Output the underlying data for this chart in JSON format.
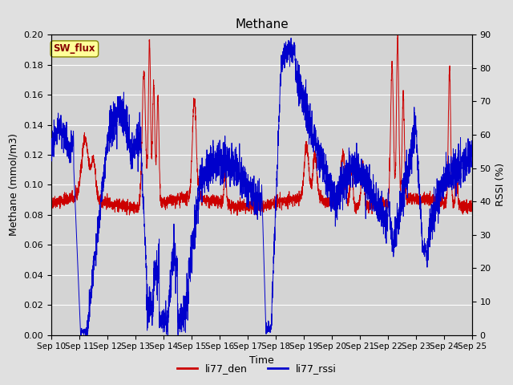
{
  "title": "Methane",
  "ylabel_left": "Methane (mmol/m3)",
  "ylabel_right": "RSSI (%)",
  "xlabel": "Time",
  "ylim_left": [
    0.0,
    0.2
  ],
  "ylim_right": [
    0,
    90
  ],
  "yticks_left": [
    0.0,
    0.02,
    0.04,
    0.06,
    0.08,
    0.1,
    0.12,
    0.14,
    0.16,
    0.18,
    0.2
  ],
  "yticks_right": [
    0,
    10,
    20,
    30,
    40,
    50,
    60,
    70,
    80,
    90
  ],
  "x_tick_labels": [
    "Sep 10",
    "Sep 11",
    "Sep 12",
    "Sep 13",
    "Sep 14",
    "Sep 15",
    "Sep 16",
    "Sep 17",
    "Sep 18",
    "Sep 19",
    "Sep 20",
    "Sep 21",
    "Sep 22",
    "Sep 23",
    "Sep 24",
    "Sep 25"
  ],
  "color_den": "#cc0000",
  "color_rssi": "#0000cc",
  "background_color": "#e0e0e0",
  "plot_bg_color": "#d4d4d4",
  "legend_label_den": "li77_den",
  "legend_label_rssi": "li77_rssi",
  "sw_flux_label": "SW_flux",
  "sw_flux_bg": "#ffff99",
  "sw_flux_border": "#999900",
  "title_fontsize": 11,
  "axis_fontsize": 9,
  "tick_fontsize": 8,
  "legend_fontsize": 9,
  "num_points": 3600,
  "seed": 42
}
